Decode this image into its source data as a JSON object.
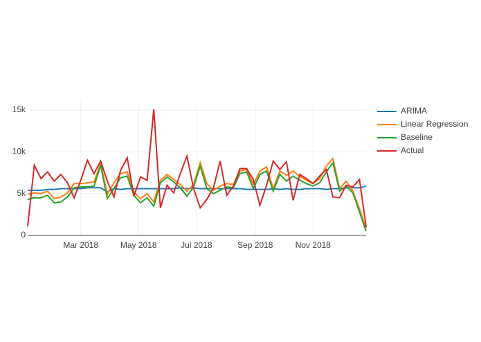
{
  "chart_data": {
    "type": "line",
    "x": [
      0,
      1,
      2,
      3,
      4,
      5,
      6,
      7,
      8,
      9,
      10,
      11,
      12,
      13,
      14,
      15,
      16,
      17,
      18,
      19,
      20,
      21,
      22,
      23,
      24,
      25,
      26,
      27,
      28,
      29,
      30,
      31,
      32,
      33,
      34,
      35,
      36,
      37,
      38,
      39,
      40,
      41,
      42,
      43,
      44,
      45,
      46,
      47,
      48,
      49,
      50,
      51
    ],
    "xlim": [
      0,
      51
    ],
    "xticks": [
      {
        "value": 8,
        "label": "Mar 2018"
      },
      {
        "value": 16.71,
        "label": "May 2018"
      },
      {
        "value": 25.43,
        "label": "Jul 2018"
      },
      {
        "value": 34.29,
        "label": "Sep 2018"
      },
      {
        "value": 43,
        "label": "Nov 2018"
      }
    ],
    "ylim": [
      0,
      16000
    ],
    "yticks": [
      0,
      {
        "value": 5000,
        "label": "5k"
      },
      {
        "value": 10000,
        "label": "10k"
      },
      {
        "value": 15000,
        "label": "15k"
      }
    ],
    "grid": true,
    "legend": "right",
    "series": [
      {
        "name": "ARIMA",
        "color": "#1f77b4",
        "values": [
          5400,
          5400,
          5400,
          5500,
          5500,
          5600,
          5600,
          5600,
          5600,
          5700,
          5700,
          5700,
          5200,
          5600,
          5500,
          5600,
          5600,
          5600,
          5600,
          5600,
          5600,
          5600,
          5600,
          5700,
          5600,
          5700,
          5600,
          5600,
          5600,
          5600,
          5600,
          5600,
          5600,
          5500,
          5500,
          5500,
          5500,
          5600,
          5500,
          5600,
          5500,
          5500,
          5600,
          5600,
          5600,
          5500,
          5600,
          5600,
          5700,
          5700,
          5700,
          5900
        ]
      },
      {
        "name": "Linear Regression",
        "color": "#ff7f0e",
        "values": [
          4900,
          5100,
          5000,
          5300,
          4400,
          4600,
          5100,
          6200,
          6200,
          6300,
          6400,
          8600,
          4900,
          6300,
          7400,
          7600,
          5200,
          4400,
          5000,
          4000,
          6600,
          7300,
          6700,
          6100,
          5300,
          6100,
          8700,
          6200,
          5400,
          5900,
          6200,
          6100,
          7700,
          7900,
          6100,
          7700,
          8200,
          5600,
          7700,
          7200,
          7700,
          7100,
          6600,
          6200,
          6800,
          8300,
          9200,
          5600,
          6500,
          5300,
          3200,
          800
        ]
      },
      {
        "name": "Baseline",
        "color": "#2ca02c",
        "values": [
          4300,
          4500,
          4500,
          4800,
          3900,
          4000,
          4600,
          5700,
          5800,
          5800,
          5900,
          8400,
          4400,
          5600,
          6900,
          7100,
          4800,
          3900,
          4500,
          3500,
          6300,
          7000,
          6400,
          5700,
          4700,
          5800,
          8300,
          5600,
          5000,
          5400,
          5800,
          5700,
          7400,
          7600,
          5600,
          7300,
          7700,
          5300,
          7300,
          6500,
          7100,
          6600,
          6200,
          5900,
          6300,
          7600,
          8700,
          5300,
          5900,
          5100,
          2800,
          500
        ]
      },
      {
        "name": "Actual",
        "color": "#d62728",
        "values": [
          1100,
          8400,
          6800,
          7600,
          6500,
          7300,
          6300,
          4500,
          6600,
          9000,
          7400,
          8900,
          6500,
          4600,
          7800,
          9300,
          4700,
          7000,
          6600,
          15100,
          3300,
          6000,
          5100,
          7400,
          9500,
          5600,
          3300,
          4300,
          5700,
          8900,
          4800,
          5900,
          8000,
          8000,
          6700,
          3600,
          6000,
          8900,
          7900,
          8800,
          4200,
          7300,
          6800,
          6200,
          7100,
          7900,
          4600,
          4500,
          6000,
          5800,
          6700,
          1000
        ]
      }
    ]
  }
}
